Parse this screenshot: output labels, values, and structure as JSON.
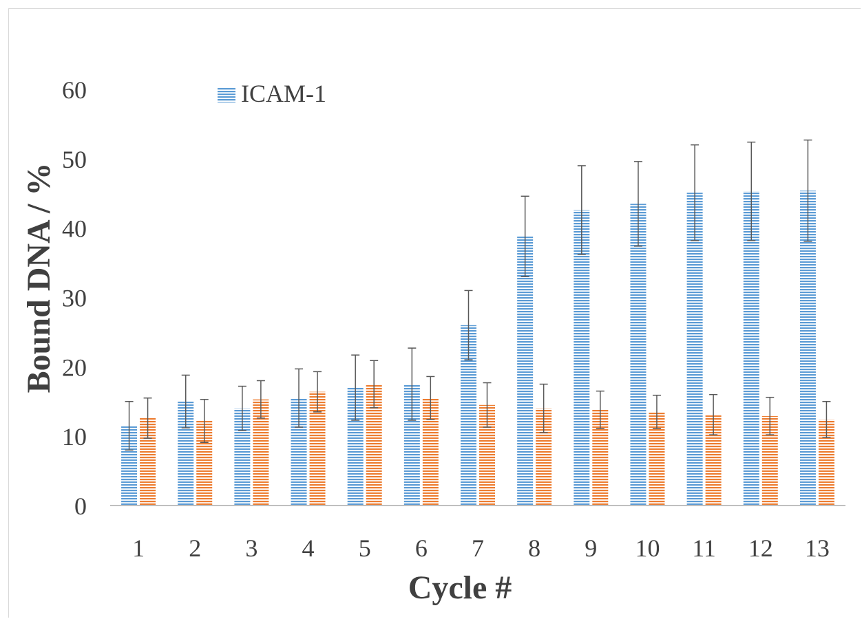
{
  "chart_data": {
    "type": "bar",
    "title": "",
    "xlabel": "Cycle #",
    "ylabel": "Bound DNA / %",
    "ylim": [
      0,
      60
    ],
    "yticks": [
      0,
      10,
      20,
      30,
      40,
      50,
      60
    ],
    "categories": [
      "1",
      "2",
      "3",
      "4",
      "5",
      "6",
      "7",
      "8",
      "9",
      "10",
      "11",
      "12",
      "13"
    ],
    "legend_position": "top-left",
    "grid": false,
    "series": [
      {
        "name": "ICAM-1",
        "color": "#5b9bd5",
        "pattern": "horizontal-stripes",
        "values": [
          11.5,
          15,
          14,
          15.5,
          17,
          17.5,
          26,
          38.8,
          42.6,
          43.5,
          45.1,
          45.3,
          45.4
        ],
        "errors": [
          3.5,
          3.8,
          3.2,
          4.2,
          4.7,
          5.2,
          5,
          5.8,
          6.4,
          6.1,
          6.9,
          7.1,
          7.3
        ]
      },
      {
        "color": "#ed7d31",
        "pattern": "horizontal-stripes",
        "values": [
          12.6,
          12.2,
          15.3,
          16.4,
          17.5,
          15.5,
          14.5,
          14,
          13.8,
          13.5,
          13.1,
          12.9,
          12.4
        ],
        "errors": [
          2.9,
          3.1,
          2.7,
          2.9,
          3.4,
          3.1,
          3.2,
          3.5,
          2.7,
          2.4,
          2.9,
          2.7,
          2.6
        ]
      }
    ]
  }
}
